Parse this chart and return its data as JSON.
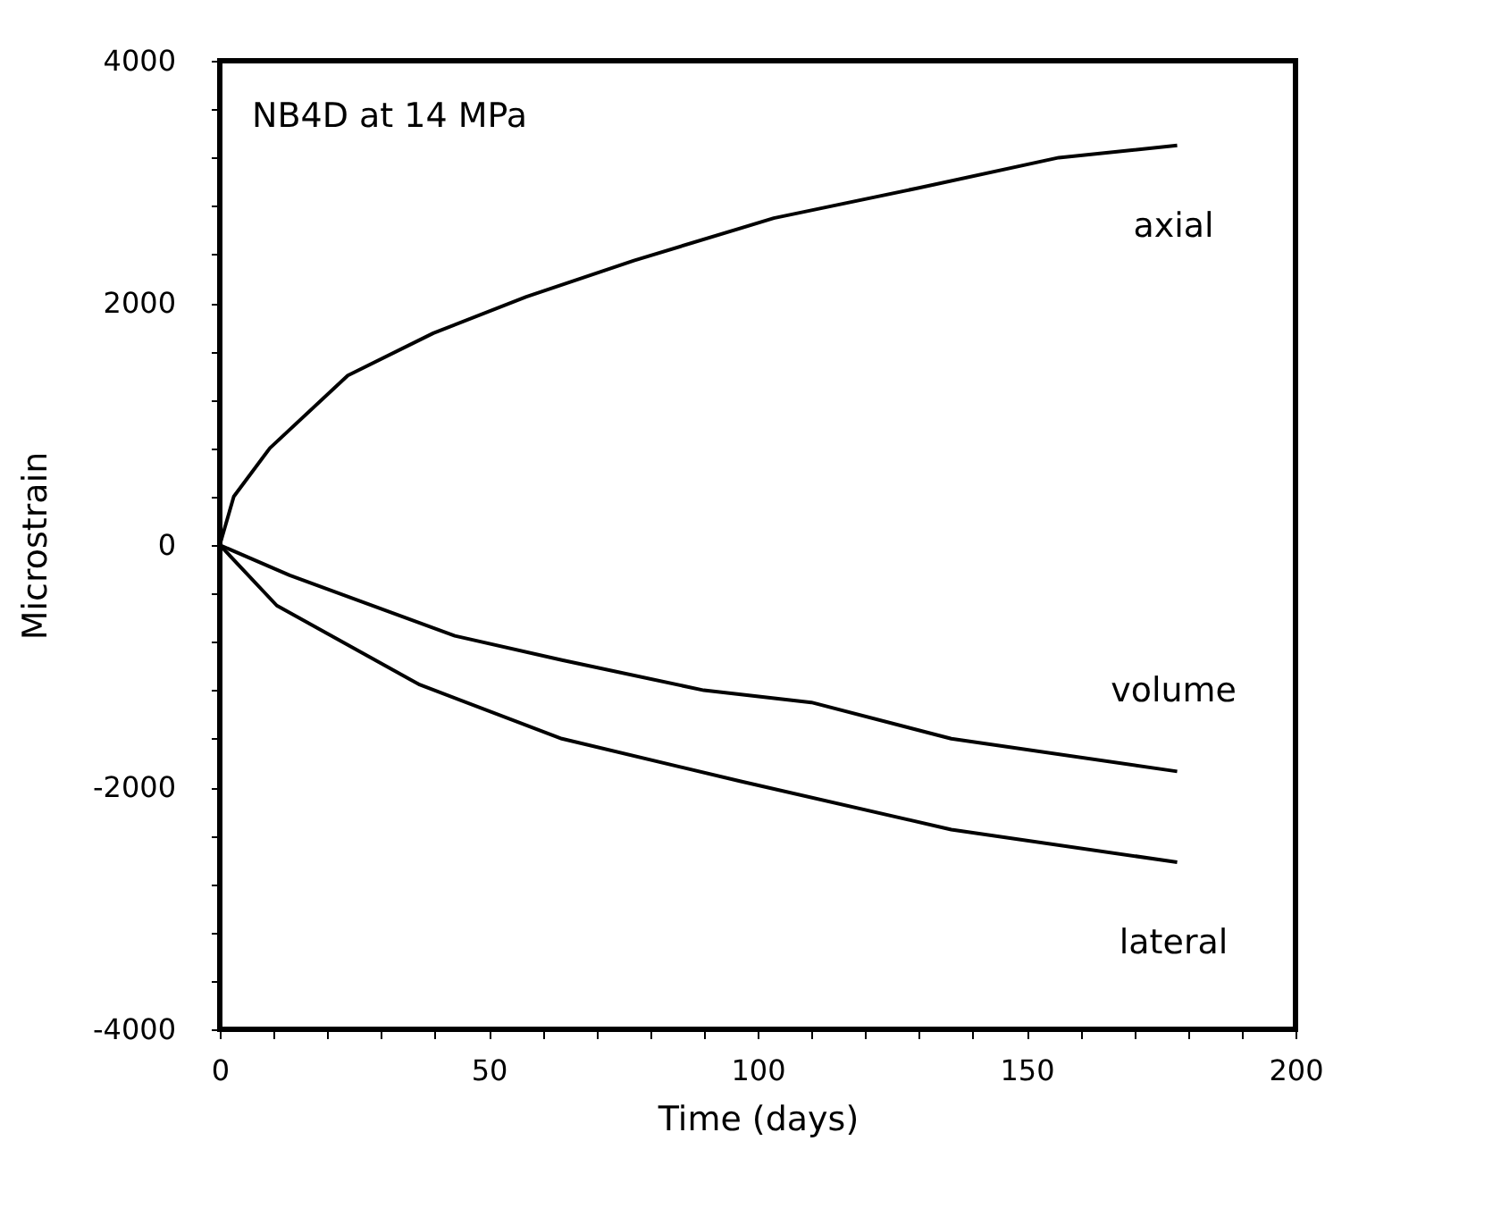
{
  "chart_data": {
    "type": "line",
    "title": "NB4D at 14 MPa",
    "xlabel": "Time (days)",
    "ylabel": "Microstrain",
    "xlim": [
      0,
      200
    ],
    "ylim": [
      -4000,
      4000
    ],
    "xticks": [
      0,
      {
        "value": 10,
        "label": null
      },
      {
        "value": 20,
        "label": null
      },
      {
        "value": 30,
        "label": null
      },
      {
        "value": 40,
        "label": null
      },
      50,
      {
        "value": 60,
        "label": null
      },
      {
        "value": 70,
        "label": null
      },
      {
        "value": 80,
        "label": null
      },
      {
        "value": 90,
        "label": null
      },
      100,
      {
        "value": 110,
        "label": null
      },
      {
        "value": 120,
        "label": null
      },
      {
        "value": 130,
        "label": null
      },
      {
        "value": 140,
        "label": null
      },
      150,
      {
        "value": 160,
        "label": null
      },
      {
        "value": 170,
        "label": null
      },
      {
        "value": 180,
        "label": null
      },
      {
        "value": 190,
        "label": null
      },
      200
    ],
    "yticks": [
      -4000,
      {
        "value": -3600,
        "label": null
      },
      {
        "value": -3200,
        "label": null
      },
      {
        "value": -2800,
        "label": null
      },
      {
        "value": -2400,
        "label": null
      },
      -2000,
      {
        "value": -1600,
        "label": null
      },
      {
        "value": -1200,
        "label": null
      },
      {
        "value": -800,
        "label": null
      },
      {
        "value": -400,
        "label": null
      },
      0,
      {
        "value": 400,
        "label": null
      },
      {
        "value": 800,
        "label": null
      },
      {
        "value": 1200,
        "label": null
      },
      {
        "value": 1600,
        "label": null
      },
      2000,
      {
        "value": 2400,
        "label": null
      },
      {
        "value": 2800,
        "label": null
      },
      {
        "value": 3200,
        "label": null
      },
      {
        "value": 3600,
        "label": null
      },
      4000
    ],
    "grid": false,
    "marker": "none",
    "line_style": "solid",
    "series": [
      {
        "name": "axial",
        "color": "#000000",
        "x": [
          0,
          2.6,
          9.3,
          23.8,
          39.7,
          57,
          77,
          103,
          130,
          156,
          178
        ],
        "values": [
          0,
          400,
          800,
          1400,
          1750,
          2050,
          2350,
          2700,
          2950,
          3200,
          3300
        ]
      },
      {
        "name": "volume",
        "color": "#000000",
        "x": [
          0,
          13,
          43.7,
          63.6,
          90,
          110,
          136,
          178
        ],
        "values": [
          0,
          -250,
          -750,
          -950,
          -1200,
          -1300,
          -1600,
          -1870
        ]
      },
      {
        "name": "lateral",
        "color": "#000000",
        "x": [
          0,
          10.6,
          37,
          63.6,
          96.7,
          136,
          178
        ],
        "values": [
          0,
          -500,
          -1150,
          -1600,
          -1950,
          -2350,
          -2620
        ]
      }
    ]
  }
}
